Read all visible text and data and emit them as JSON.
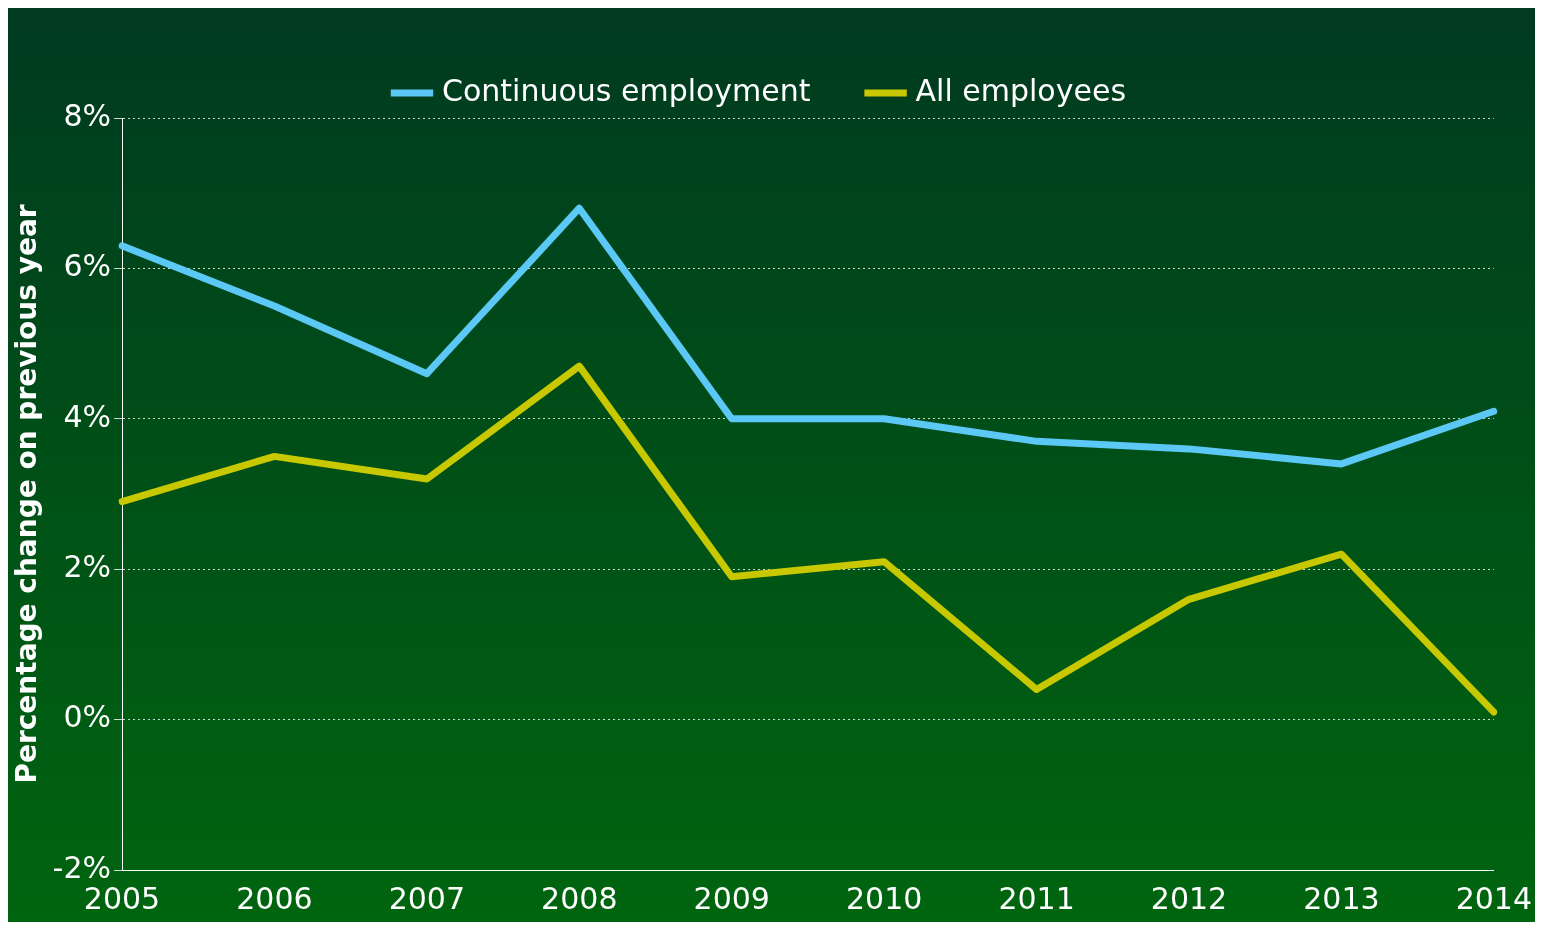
{
  "chart_data": {
    "type": "line",
    "ylabel": "Percentage change on previous year",
    "categories": [
      "2005",
      "2006",
      "2007",
      "2008",
      "2009",
      "2010",
      "2011",
      "2012",
      "2013",
      "2014"
    ],
    "series": [
      {
        "name": "Continuous employment",
        "color": "#5bc8f5",
        "values": [
          6.3,
          5.5,
          4.6,
          6.8,
          4.0,
          4.0,
          3.7,
          3.6,
          3.4,
          4.1
        ]
      },
      {
        "name": "All employees",
        "color": "#c8c800",
        "values": [
          2.9,
          3.5,
          3.2,
          4.7,
          1.9,
          2.1,
          0.4,
          1.6,
          2.2,
          0.1
        ]
      }
    ],
    "ylim": [
      -2,
      8
    ],
    "yticks": [
      {
        "value": -2,
        "label": "-2%"
      },
      {
        "value": 0,
        "label": "0%"
      },
      {
        "value": 2,
        "label": "2%"
      },
      {
        "value": 4,
        "label": "4%"
      },
      {
        "value": 6,
        "label": "6%"
      },
      {
        "value": 8,
        "label": "8%"
      }
    ],
    "grid": "y",
    "legend": "top",
    "marker": "none",
    "line_style": "solid"
  }
}
